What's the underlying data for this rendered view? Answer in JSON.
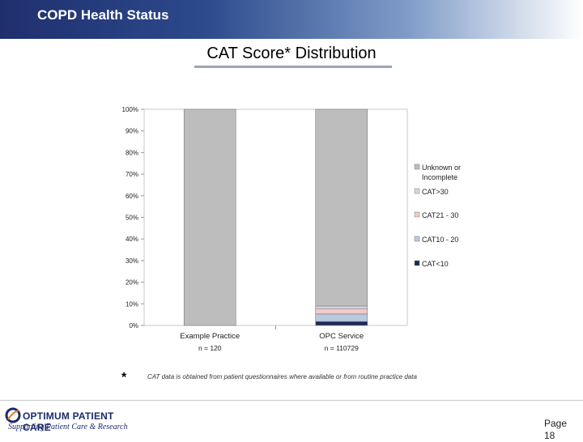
{
  "header": {
    "title": "COPD Health Status"
  },
  "chart_data": {
    "type": "bar",
    "stacked": true,
    "title": "CAT Score* Distribution",
    "categories": [
      "Example Practice",
      "OPC Service"
    ],
    "sample_sizes": [
      "n = 120",
      "n = 110729"
    ],
    "yticks": [
      "0%",
      "10%",
      "20%",
      "30%",
      "40%",
      "50%",
      "60%",
      "70%",
      "80%",
      "90%",
      "100%"
    ],
    "ylim": [
      0,
      100
    ],
    "legend_position": "right",
    "series": [
      {
        "name": "CAT<10",
        "color": "#1b2a5e",
        "values": [
          0,
          1.8
        ]
      },
      {
        "name": "CAT10 - 20",
        "color": "#b9c9df",
        "values": [
          0,
          3.5
        ]
      },
      {
        "name": "CAT21 - 30",
        "color": "#f2c9c9",
        "values": [
          0,
          2.5
        ]
      },
      {
        "name": "CAT>30",
        "color": "#d3d8e6",
        "values": [
          0,
          1.2
        ]
      },
      {
        "name": "Unknown or Incomplete",
        "color": "#bdbdbd",
        "values": [
          100,
          91.0
        ]
      }
    ],
    "legend_labels": [
      "Unknown or Incomplete",
      "CAT>30",
      "CAT21 - 30",
      "CAT10 - 20",
      "CAT<10"
    ]
  },
  "footnote": {
    "marker": "*",
    "text": "CAT data is obtained from patient questionnaires where available or from routine practice data"
  },
  "logo": {
    "name": "OPTIMUM PATIENT CARE",
    "tagline": "Supporting Patient Care & Research"
  },
  "page": {
    "label": "Page 18"
  }
}
